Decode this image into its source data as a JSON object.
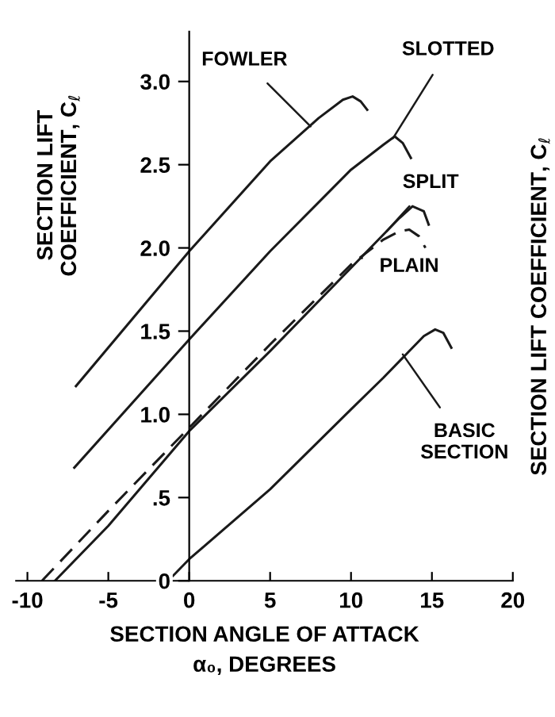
{
  "chart_data": {
    "type": "line",
    "xlabel": "SECTION ANGLE OF ATTACK\nα₀, DEGREES",
    "ylabel": "SECTION LIFT\nCOEFFICIENT, C$_{ℓ}$",
    "y2label": "SECTION LIFT COEFFICIENT, C$_{ℓ}$",
    "xlim": [
      -10.7,
      20
    ],
    "ylim": [
      0,
      3.3
    ],
    "xticks": [
      -10,
      -5,
      0,
      5,
      10,
      15,
      20
    ],
    "yticks": [
      0,
      {
        "value": 0.5,
        "label": ".5"
      },
      {
        "value": 1.0,
        "label": "1.0"
      },
      {
        "value": 1.5,
        "label": "1.5"
      },
      {
        "value": 2.0,
        "label": "2.0"
      },
      {
        "value": 2.5,
        "label": "2.5"
      },
      {
        "value": 3.0,
        "label": "3.0"
      }
    ],
    "grid": false,
    "legend": false,
    "marker": "none",
    "series": [
      {
        "color": "#1a1a1a",
        "line_style": "solid",
        "x": [
          -7.0,
          0,
          5,
          8,
          9.5,
          10.1,
          10.6,
          11.0
        ],
        "values": [
          1.17,
          1.98,
          2.52,
          2.78,
          2.89,
          2.91,
          2.88,
          2.83
        ]
      },
      {
        "color": "#1a1a1a",
        "line_style": "solid",
        "x": [
          -7.1,
          0,
          5,
          10,
          12,
          12.7,
          13.2,
          13.7
        ],
        "values": [
          0.68,
          1.45,
          1.98,
          2.47,
          2.62,
          2.67,
          2.63,
          2.54
        ]
      },
      {
        "color": "#1a1a1a",
        "line_style": "solid",
        "x": [
          -8.3,
          -5,
          0,
          5,
          10,
          12,
          13,
          13.8,
          14.5,
          14.8
        ],
        "values": [
          0,
          0.33,
          0.9,
          1.38,
          1.88,
          2.08,
          2.18,
          2.25,
          2.22,
          2.14
        ]
      },
      {
        "color": "#1a1a1a",
        "line_style": "dashed",
        "x": [
          -9.1,
          -5,
          0,
          5,
          10,
          12,
          13,
          13.6,
          14.2,
          14.6
        ],
        "values": [
          0,
          0.42,
          0.92,
          1.42,
          1.9,
          2.05,
          2.1,
          2.11,
          2.07,
          2.0
        ]
      },
      {
        "color": "#1a1a1a",
        "line_style": "solid",
        "x": [
          -1.0,
          0,
          5,
          10,
          12,
          13.5,
          14.5,
          15.2,
          15.7,
          16.2
        ],
        "values": [
          0.03,
          0.13,
          0.55,
          1.03,
          1.22,
          1.37,
          1.47,
          1.51,
          1.49,
          1.4
        ]
      }
    ],
    "annotations": [
      {
        "text": "FOWLER",
        "x": 7.5,
        "y": 2.73
      },
      {
        "text": "SLOTTED",
        "x": 12.6,
        "y": 2.66
      },
      {
        "text": "SPLIT",
        "x": 12.2,
        "y": 2.1
      },
      {
        "text": "PLAIN",
        "x": 10.6,
        "y": 1.94
      },
      {
        "text": "BASIC\nSECTION",
        "x": 13.2,
        "y": 1.36
      }
    ]
  }
}
